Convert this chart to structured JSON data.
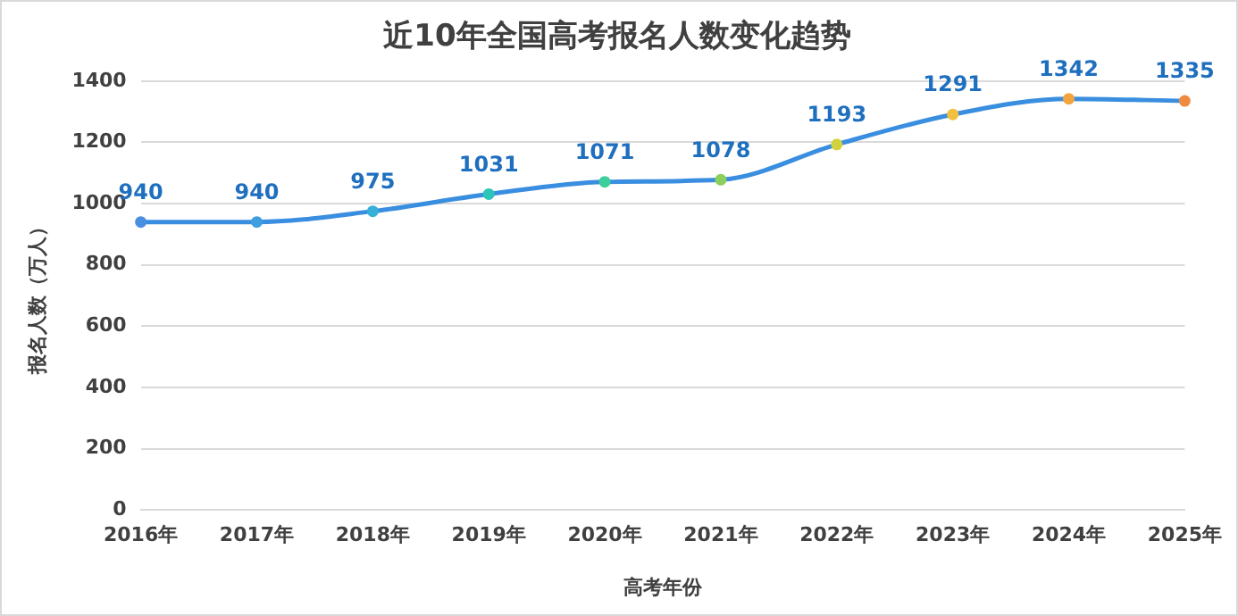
{
  "chart_data": {
    "type": "line",
    "title": "近10年全国高考报名人数变化趋势",
    "xlabel": "高考年份",
    "ylabel": "报名人数（万人）",
    "categories": [
      "2016年",
      "2017年",
      "2018年",
      "2019年",
      "2020年",
      "2021年",
      "2022年",
      "2023年",
      "2024年",
      "2025年"
    ],
    "series": [
      {
        "color": "#3a8ee0",
        "colors": [
          "#4a8fe0",
          "#3f9ee0",
          "#35b0d8",
          "#2ec4b8",
          "#3ccf9c",
          "#8ccf5a",
          "#d2d23e",
          "#f2c03e",
          "#f4a43e",
          "#f08a40"
        ],
        "values": [
          940,
          940,
          975,
          1031,
          1071,
          1078,
          1193,
          1291,
          1342,
          1335
        ]
      }
    ],
    "ylim": [
      0,
      1400
    ],
    "yticks": [
      0,
      200,
      400,
      600,
      800,
      1000,
      1200,
      1400
    ],
    "grid": "y",
    "legend": false,
    "marker": "circle",
    "line_style": "solid",
    "data_labels": true
  }
}
